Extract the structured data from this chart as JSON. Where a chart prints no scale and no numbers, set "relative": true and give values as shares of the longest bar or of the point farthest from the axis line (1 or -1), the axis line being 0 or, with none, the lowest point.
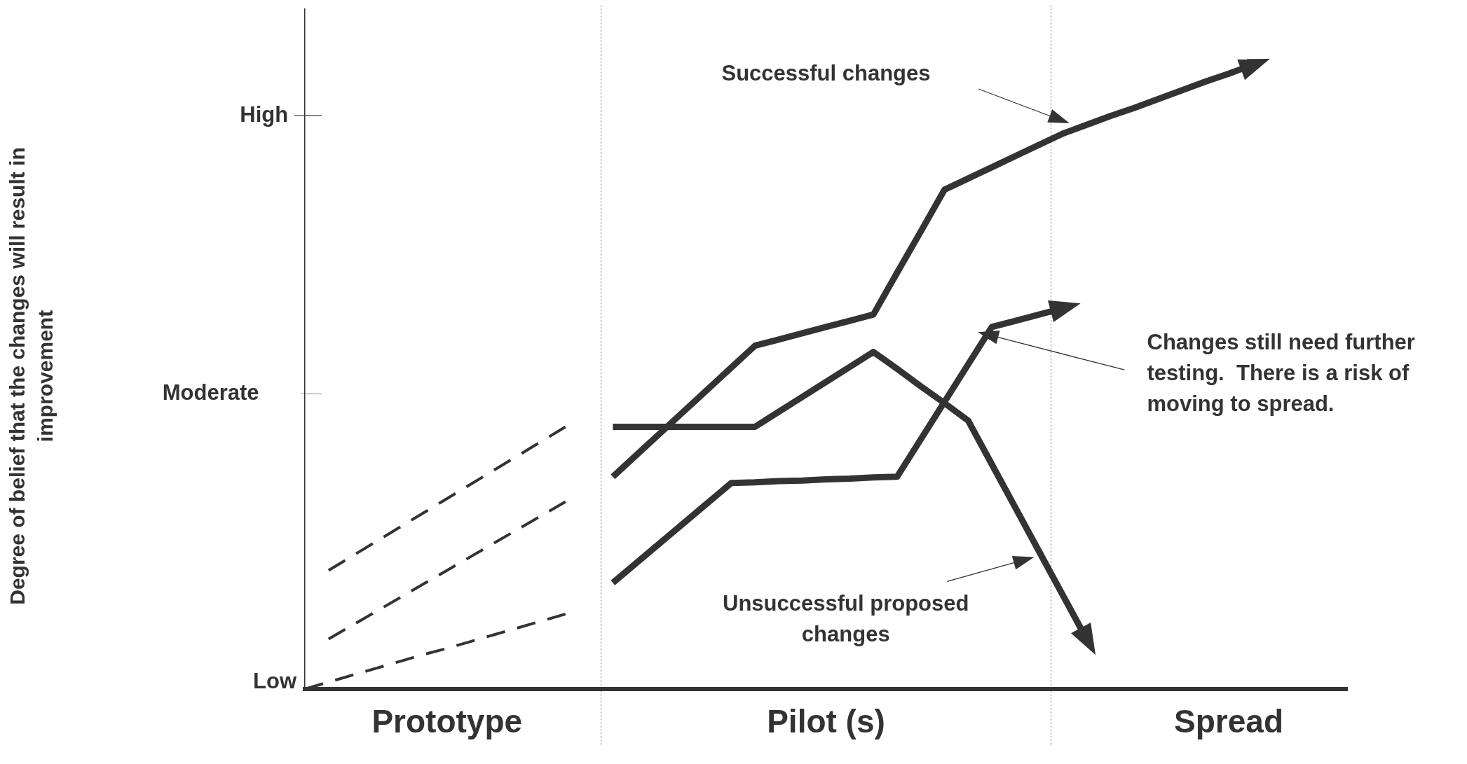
{
  "chart_data": {
    "type": "line",
    "relative": true,
    "categories": [
      null,
      null,
      null,
      null,
      null,
      null,
      "Prototype",
      null,
      null,
      null,
      null,
      null,
      null,
      null,
      null,
      null,
      null,
      null,
      null,
      null,
      null,
      null,
      "Pilot (s)",
      null,
      null,
      null,
      null,
      null,
      null,
      null,
      null,
      null,
      null,
      null,
      null,
      null,
      null,
      null,
      null,
      "Spread",
      null,
      null,
      null,
      null,
      null
    ],
    "series": [
      {
        "color": "#333333",
        "line_style": "solid",
        "values": [
          null,
          null,
          null,
          null,
          null,
          null,
          null,
          null,
          null,
          null,
          null,
          null,
          null,
          0.34,
          0.375,
          0.41,
          0.445,
          0.48,
          0.515,
          0.55,
          0.56,
          0.57,
          0.58,
          0.59,
          0.6,
          0.667,
          0.733,
          0.8,
          0.818,
          0.836,
          0.854,
          0.872,
          0.89,
          0.904,
          0.918,
          0.931,
          0.945,
          0.959,
          0.973,
          0.986,
          1,
          null,
          null,
          null,
          null
        ]
      },
      {
        "color": "#333333",
        "line_style": "solid",
        "values": [
          null,
          null,
          null,
          null,
          null,
          null,
          null,
          null,
          null,
          null,
          null,
          null,
          null,
          0.17,
          0.202,
          0.234,
          0.266,
          0.298,
          0.33,
          0.331,
          0.333,
          0.334,
          0.336,
          0.337,
          0.339,
          0.34,
          0.4,
          0.46,
          0.52,
          0.58,
          0.59,
          0.6,
          0.61,
          null,
          null,
          null,
          null,
          null,
          null,
          null,
          null,
          null,
          null,
          null,
          null
        ]
      },
      {
        "color": "#333333",
        "line_style": "solid",
        "values": [
          null,
          null,
          null,
          null,
          null,
          null,
          null,
          null,
          null,
          null,
          null,
          null,
          null,
          0.42,
          0.42,
          0.42,
          0.42,
          0.42,
          0.42,
          0.42,
          0.444,
          0.468,
          0.492,
          0.516,
          0.54,
          0.513,
          0.485,
          0.458,
          0.43,
          0.36,
          0.29,
          0.22,
          0.15,
          0.08,
          null,
          null,
          null,
          null,
          null,
          null,
          null,
          null,
          null,
          null,
          null
        ]
      },
      {
        "color": "#333333",
        "line_style": "dashed",
        "values": [
          null,
          0.19,
          0.213,
          0.236,
          0.259,
          0.282,
          0.305,
          0.328,
          0.351,
          0.374,
          0.397,
          0.42,
          null,
          null,
          null,
          null,
          null,
          null,
          null,
          null,
          null,
          null,
          null,
          null,
          null,
          null,
          null,
          null,
          null,
          null,
          null,
          null,
          null,
          null,
          null,
          null,
          null,
          null,
          null,
          null,
          null,
          null,
          null,
          null,
          null
        ]
      },
      {
        "color": "#333333",
        "line_style": "dashed",
        "values": [
          null,
          0.08,
          0.102,
          0.124,
          0.146,
          0.168,
          0.19,
          0.212,
          0.234,
          0.256,
          0.278,
          0.3,
          null,
          null,
          null,
          null,
          null,
          null,
          null,
          null,
          null,
          null,
          null,
          null,
          null,
          null,
          null,
          null,
          null,
          null,
          null,
          null,
          null,
          null,
          null,
          null,
          null,
          null,
          null,
          null,
          null,
          null,
          null,
          null,
          null
        ]
      },
      {
        "color": "#333333",
        "line_style": "dashed",
        "values": [
          0,
          0.011,
          0.022,
          0.033,
          0.044,
          0.055,
          0.065,
          0.076,
          0.087,
          0.098,
          0.109,
          0.12,
          null,
          null,
          null,
          null,
          null,
          null,
          null,
          null,
          null,
          null,
          null,
          null,
          null,
          null,
          null,
          null,
          null,
          null,
          null,
          null,
          null,
          null,
          null,
          null,
          null,
          null,
          null,
          null,
          null,
          null,
          null,
          null,
          null
        ]
      }
    ],
    "annotations": [
      "Successful changes",
      "Changes still need further testing.  There is a risk of moving to spread.",
      "Unsuccessful proposed changes",
      "High",
      "Moderate",
      "Low",
      "Degree of belief that the changes will result in improvement"
    ],
    "grid": false,
    "legend": false,
    "marker": "none"
  }
}
